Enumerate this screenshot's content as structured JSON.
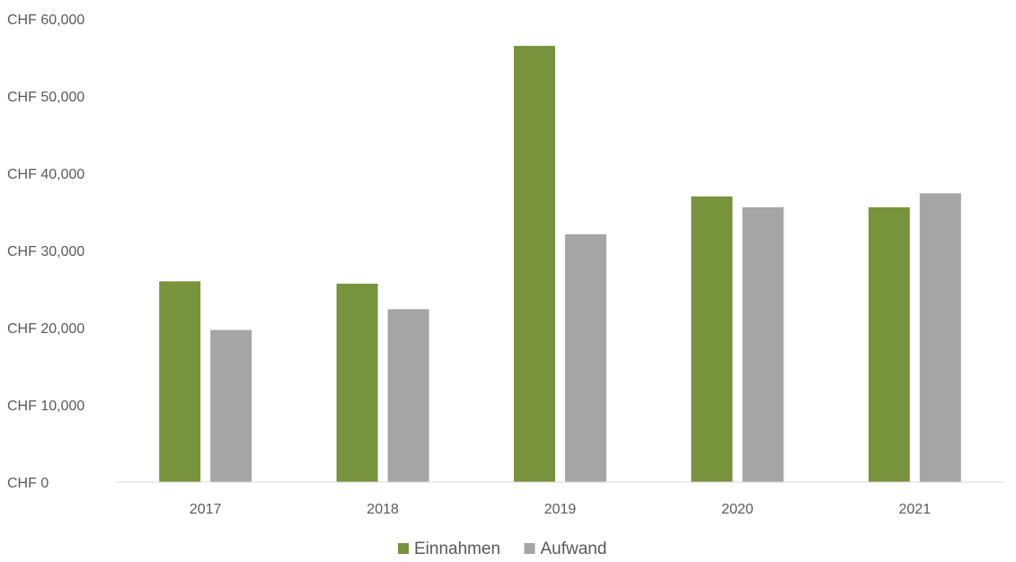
{
  "chart_data": {
    "type": "bar",
    "title": "",
    "xlabel": "",
    "ylabel": "",
    "categories": [
      "2017",
      "2018",
      "2019",
      "2020",
      "2021"
    ],
    "series": [
      {
        "name": "Einnahmen",
        "color": "#77933c",
        "values": [
          26000,
          25700,
          56500,
          37000,
          35600
        ]
      },
      {
        "name": "Aufwand",
        "color": "#a5a5a5",
        "values": [
          19700,
          22400,
          32100,
          35600,
          37400
        ]
      }
    ],
    "ylim": [
      0,
      60000
    ],
    "yticks": [
      0,
      10000,
      20000,
      30000,
      40000,
      50000,
      60000
    ],
    "ytick_labels": [
      "CHF 0",
      "CHF 10,000",
      "CHF 20,000",
      "CHF 30,000",
      "CHF 40,000",
      "CHF 50,000",
      "CHF 60,000"
    ],
    "grid": false,
    "legend_position": "bottom-center"
  }
}
